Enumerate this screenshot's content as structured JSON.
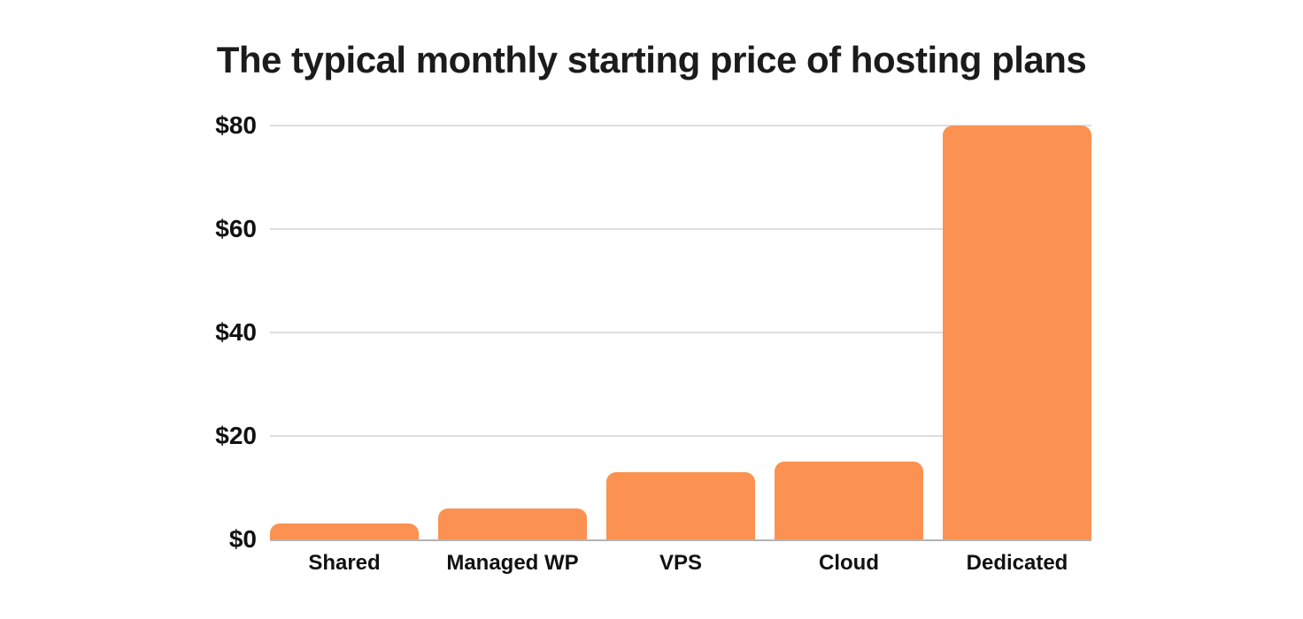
{
  "title": "The typical monthly starting price of hosting plans",
  "colors": {
    "bar": "#FB9251",
    "gridline": "#dedede",
    "baseline": "#b3b3b3",
    "text": "#111111",
    "title_text": "#1b1b1b",
    "background": "#ffffff"
  },
  "chart_data": {
    "type": "bar",
    "title": "The typical monthly starting price of hosting plans",
    "categories": [
      "Shared",
      "Managed WP",
      "VPS",
      "Cloud",
      "Dedicated"
    ],
    "values": [
      3,
      6,
      13,
      15,
      80
    ],
    "value_unit": "USD per month",
    "xlabel": "",
    "ylabel": "",
    "ylim": [
      0,
      80
    ],
    "yticks": [
      {
        "value": 0,
        "label": "$0"
      },
      {
        "value": 20,
        "label": "$20"
      },
      {
        "value": 40,
        "label": "$40"
      },
      {
        "value": 60,
        "label": "$60"
      },
      {
        "value": 80,
        "label": "$80"
      }
    ],
    "grid": "horizontal",
    "legend_position": "none",
    "bar_color": "#FB9251"
  }
}
